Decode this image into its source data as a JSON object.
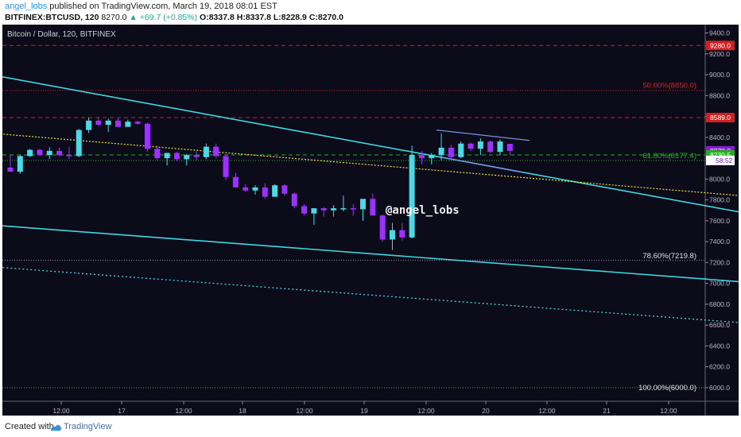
{
  "header": {
    "author": "angel_lobs",
    "published": " published on TradingView.com, March 19, 2018 08:01 EST",
    "symbol": "BITFINEX:BTCUSD, 120",
    "last": "8270.0",
    "change": "▲ +69.7 (+0.85%)",
    "ohlc_o": "O:8337.8",
    "ohlc_h": "H:8337.8",
    "ohlc_l": "L:8228.9",
    "ohlc_c": "C:8270.0"
  },
  "chart_title": "Bitcoin / Dollar, 120, BITFINEX",
  "watermark": "@angel_lobs",
  "footer": {
    "created": "Created with",
    "brand": "TradingView"
  },
  "colors": {
    "background": "#0b0b1a",
    "up": "#4dd8e6",
    "down": "#9b30ff",
    "trendline": "#40d8e0",
    "channel": "#7b8ee8",
    "yellow_dotted": "#f0e030",
    "red_level": "#d02020",
    "green_level": "#20b020",
    "price_marker": "#8a1ad8"
  },
  "chart_data": {
    "type": "candlestick",
    "y_axis": {
      "range": [
        5870,
        9480
      ],
      "ticks": [
        "9400.0",
        "9200.0",
        "9000.0",
        "8800.0",
        "8600.0",
        "8400.0",
        "8200.0",
        "8000.0",
        "7800.0",
        "7600.0",
        "7400.0",
        "7200.0",
        "7000.0",
        "6800.0",
        "6600.0",
        "6400.0",
        "6200.0",
        "6000.0"
      ]
    },
    "x_axis": {
      "labels": [
        "12:00",
        "17",
        "12:00",
        "18",
        "12:00",
        "19",
        "12:00",
        "20",
        "12:00",
        "21",
        "12:00"
      ]
    },
    "levels": [
      {
        "price": 9280.0,
        "label": "9280.0",
        "color": "red",
        "style": "dashed"
      },
      {
        "price": 8850.0,
        "label": "50.00%(8850.0)",
        "color": "red",
        "style": "dotted"
      },
      {
        "price": 8589.0,
        "label": "8589.0",
        "color": "red",
        "style": "dashed"
      },
      {
        "price": 8270.0,
        "label": "8270.0",
        "color": "marker",
        "style": "none"
      },
      {
        "price": 8230.5,
        "label": "8230.5",
        "color": "green",
        "style": "dashed"
      },
      {
        "price": 8177.4,
        "label": "61.80%(8177.4)",
        "color": "green",
        "style": "dotted"
      },
      {
        "price": 7219.8,
        "label": "78.60%(7219.8)",
        "color": "gray",
        "style": "dotted"
      },
      {
        "price": 6000.0,
        "label": "100.00%(6000.0)",
        "color": "green",
        "style": "dotted"
      }
    ],
    "countdown_label": "58:52",
    "candles": [
      [
        8110,
        8225,
        8070,
        8070
      ],
      [
        8070,
        8235,
        8050,
        8220
      ],
      [
        8220,
        8290,
        8210,
        8280
      ],
      [
        8280,
        8290,
        8230,
        8230
      ],
      [
        8230,
        8305,
        8190,
        8270
      ],
      [
        8270,
        8300,
        8220,
        8230
      ],
      [
        8230,
        8310,
        8190,
        8220
      ],
      [
        8220,
        8480,
        8210,
        8470
      ],
      [
        8470,
        8590,
        8440,
        8560
      ],
      [
        8560,
        8590,
        8510,
        8520
      ],
      [
        8520,
        8580,
        8450,
        8560
      ],
      [
        8560,
        8580,
        8500,
        8500
      ],
      [
        8500,
        8570,
        8510,
        8550
      ],
      [
        8550,
        8560,
        8520,
        8530
      ],
      [
        8530,
        8540,
        8260,
        8290
      ],
      [
        8290,
        8320,
        8180,
        8200
      ],
      [
        8200,
        8240,
        8130,
        8250
      ],
      [
        8250,
        8260,
        8170,
        8190
      ],
      [
        8190,
        8240,
        8130,
        8230
      ],
      [
        8230,
        8270,
        8180,
        8210
      ],
      [
        8210,
        8340,
        8190,
        8310
      ],
      [
        8310,
        8340,
        8200,
        8220
      ],
      [
        8220,
        8240,
        7990,
        8020
      ],
      [
        8020,
        8060,
        7920,
        7920
      ],
      [
        7920,
        7950,
        7880,
        7890
      ],
      [
        7890,
        7940,
        7850,
        7920
      ],
      [
        7920,
        7960,
        7810,
        7830
      ],
      [
        7830,
        7950,
        7830,
        7940
      ],
      [
        7940,
        7950,
        7840,
        7860
      ],
      [
        7860,
        7870,
        7720,
        7740
      ],
      [
        7740,
        7760,
        7650,
        7670
      ],
      [
        7670,
        7720,
        7560,
        7720
      ],
      [
        7720,
        7730,
        7640,
        7700
      ],
      [
        7700,
        7750,
        7640,
        7720
      ],
      [
        7720,
        7840,
        7690,
        7720
      ],
      [
        7720,
        7760,
        7650,
        7710
      ],
      [
        7710,
        7800,
        7600,
        7810
      ],
      [
        7810,
        7860,
        7660,
        7650
      ],
      [
        7650,
        7660,
        7400,
        7420
      ],
      [
        7420,
        7580,
        7320,
        7510
      ],
      [
        7510,
        7580,
        7410,
        7440
      ],
      [
        7440,
        8320,
        7430,
        8230
      ],
      [
        8230,
        8270,
        8140,
        8200
      ],
      [
        8200,
        8250,
        8140,
        8230
      ],
      [
        8230,
        8440,
        8180,
        8300
      ],
      [
        8300,
        8330,
        8180,
        8210
      ],
      [
        8210,
        8360,
        8200,
        8340
      ],
      [
        8340,
        8350,
        8270,
        8290
      ],
      [
        8290,
        8390,
        8230,
        8360
      ],
      [
        8360,
        8370,
        8250,
        8260
      ],
      [
        8260,
        8380,
        8230,
        8360
      ],
      [
        8337.8,
        8337.8,
        8228.9,
        8270.0
      ]
    ],
    "trendlines": [
      {
        "name": "main-descending",
        "style": "solid",
        "from": [
          -2,
          9000
        ],
        "to": [
          95,
          7330
        ]
      },
      {
        "name": "lower-descending",
        "style": "solid",
        "from": [
          -2,
          7560
        ],
        "to": [
          95,
          6870
        ]
      },
      {
        "name": "lower-parallel",
        "style": "dotted",
        "from": [
          -2,
          7160
        ],
        "to": [
          95,
          6480
        ]
      },
      {
        "name": "yellow-descending",
        "style": "dotted-yellow",
        "from": [
          -2,
          8440
        ],
        "to": [
          95,
          7680
        ]
      },
      {
        "name": "flag-upper",
        "style": "channel",
        "from": [
          43.5,
          8470
        ],
        "to": [
          53,
          8370
        ]
      },
      {
        "name": "flag-lower",
        "style": "channel",
        "from": [
          44,
          8210
        ],
        "to": [
          52.5,
          8060
        ]
      }
    ]
  }
}
